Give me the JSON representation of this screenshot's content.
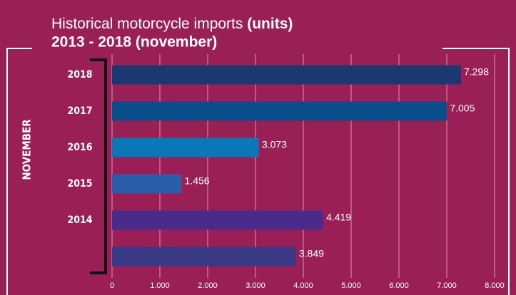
{
  "chart_data": {
    "type": "bar",
    "orientation": "horizontal",
    "title": "Historical motorcycle imports",
    "title_unit": "(units)",
    "subtitle": "2013 - 2018 (november)",
    "y_label": "NOVEMBER",
    "categories": [
      "2018",
      "2017",
      "2016",
      "2015",
      "2014",
      null
    ],
    "values": [
      7298,
      7005,
      3073,
      1456,
      4419,
      3849
    ],
    "value_labels": [
      "7.298",
      "7.005",
      "3.073",
      "1.456",
      "4.419",
      "3.849"
    ],
    "colors": [
      "#1b3872",
      "#094e8b",
      "#0a77b6",
      "#2b5ea8",
      "#4a2b89",
      "#3a3988"
    ],
    "xlim": [
      0,
      8000
    ],
    "xticks": [
      0,
      {
        "value": 1000,
        "label": "1.000"
      },
      {
        "value": 2000,
        "label": "2.000"
      },
      {
        "value": 3000,
        "label": "3.000"
      },
      {
        "value": 4000,
        "label": "4.000"
      },
      {
        "value": 5000,
        "label": "5.000"
      },
      {
        "value": 6000,
        "label": "6.000"
      },
      {
        "value": 7000,
        "label": "7.000"
      },
      {
        "value": 8000,
        "label": "8.000"
      }
    ],
    "grid": true
  }
}
